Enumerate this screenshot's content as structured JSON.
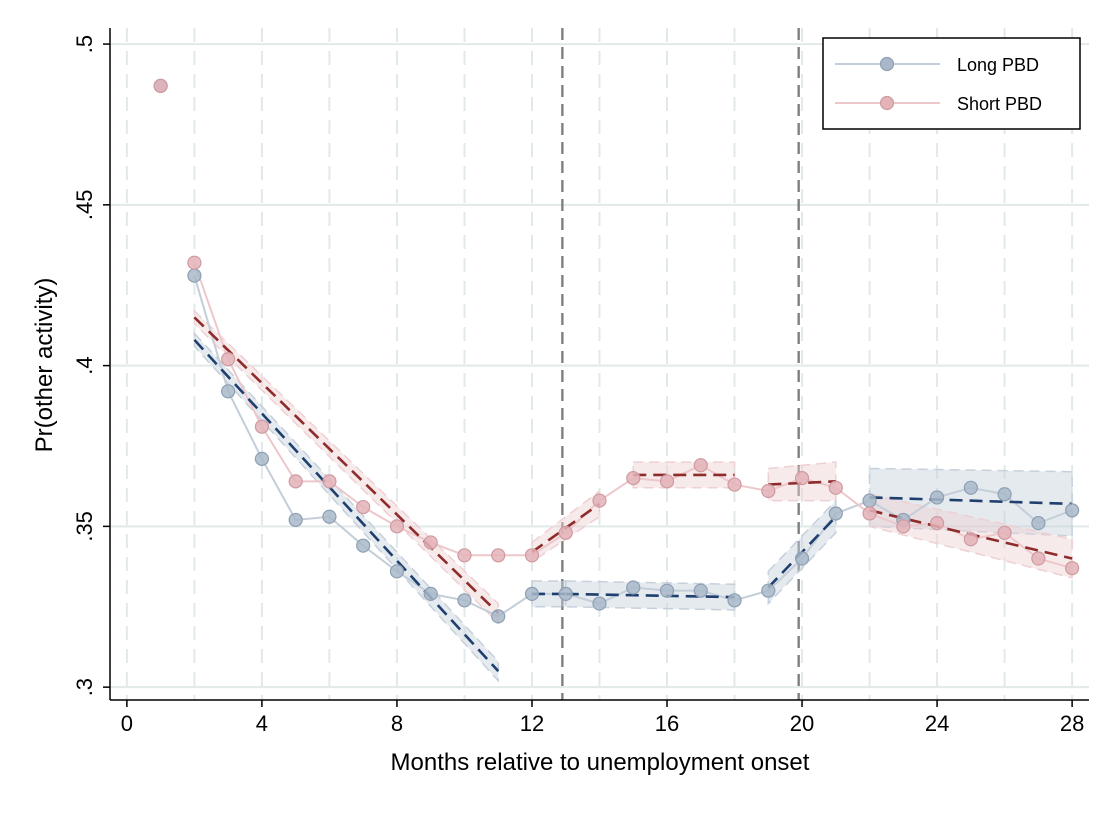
{
  "chart_data": {
    "type": "scatter",
    "xlabel": "Months relative to unemployment onset",
    "ylabel": "Pr(other activity)",
    "xlim": [
      -0.5,
      28.5
    ],
    "ylim": [
      0.296,
      0.505
    ],
    "x_ticks": [
      0,
      4,
      8,
      12,
      16,
      20,
      24,
      28
    ],
    "x_tick_labels": [
      "0",
      "4",
      "8",
      "12",
      "16",
      "20",
      "24",
      "28"
    ],
    "y_ticks": [
      0.3,
      0.35,
      0.4,
      0.45,
      0.5
    ],
    "y_tick_labels": [
      ".3",
      ".35",
      ".4",
      ".45",
      ".5"
    ],
    "x_minor_gridlines": [
      0,
      2,
      4,
      6,
      8,
      10,
      12,
      14,
      16,
      18,
      20,
      22,
      24,
      26,
      28
    ],
    "vertical_reference_lines": [
      12.9,
      19.9
    ],
    "legend_position": "top-right",
    "series": [
      {
        "name": "Long PBD",
        "color": "#1f3f6e",
        "point_color": "#a9b8c9",
        "x": [
          1,
          2,
          3,
          4,
          5,
          6,
          7,
          8,
          9,
          10,
          11,
          12,
          13,
          14,
          15,
          16,
          17,
          18,
          19,
          20,
          21,
          22,
          23,
          24,
          25,
          26,
          27,
          28
        ],
        "y": [
          0.487,
          0.428,
          0.392,
          0.371,
          0.352,
          0.353,
          0.344,
          0.336,
          0.329,
          0.327,
          0.322,
          0.329,
          0.329,
          0.326,
          0.331,
          0.33,
          0.33,
          0.327,
          0.33,
          0.34,
          0.354,
          0.358,
          0.352,
          0.359,
          0.362,
          0.36,
          0.351,
          0.355
        ],
        "fits": [
          {
            "x": [
              2,
              11
            ],
            "y": [
              0.408,
              0.305
            ],
            "ci": [
              0.002,
              0.003
            ]
          },
          {
            "x": [
              12,
              13
            ],
            "y": [
              0.329,
              0.329
            ],
            "ci": [
              0.004,
              0.004
            ]
          },
          {
            "x": [
              13,
              18
            ],
            "y": [
              0.329,
              0.328
            ],
            "ci": [
              0.004,
              0.004
            ]
          },
          {
            "x": [
              19,
              21
            ],
            "y": [
              0.331,
              0.353
            ],
            "ci": [
              0.005,
              0.005
            ]
          },
          {
            "x": [
              22,
              28
            ],
            "y": [
              0.359,
              0.357
            ],
            "ci": [
              0.009,
              0.01
            ]
          }
        ]
      },
      {
        "name": "Short PBD",
        "color": "#8e2b2b",
        "point_color": "#e3b3b8",
        "x": [
          1,
          2,
          3,
          4,
          5,
          6,
          7,
          8,
          9,
          10,
          11,
          12,
          13,
          14,
          15,
          16,
          17,
          18,
          19,
          20,
          21,
          22,
          23,
          24,
          25,
          26,
          27,
          28
        ],
        "y": [
          0.487,
          0.432,
          0.402,
          0.381,
          0.364,
          0.364,
          0.356,
          0.35,
          0.345,
          0.341,
          0.341,
          0.341,
          0.348,
          0.358,
          0.365,
          0.364,
          0.369,
          0.363,
          0.361,
          0.365,
          0.362,
          0.354,
          0.35,
          0.351,
          0.346,
          0.348,
          0.34,
          0.337
        ],
        "fits": [
          {
            "x": [
              2,
              11
            ],
            "y": [
              0.415,
              0.323
            ],
            "ci": [
              0.002,
              0.003
            ]
          },
          {
            "x": [
              12,
              14
            ],
            "y": [
              0.342,
              0.357
            ],
            "ci": [
              0.003,
              0.004
            ]
          },
          {
            "x": [
              15,
              18
            ],
            "y": [
              0.366,
              0.366
            ],
            "ci": [
              0.004,
              0.004
            ]
          },
          {
            "x": [
              19,
              21
            ],
            "y": [
              0.363,
              0.364
            ],
            "ci": [
              0.005,
              0.006
            ]
          },
          {
            "x": [
              22,
              28
            ],
            "y": [
              0.355,
              0.34
            ],
            "ci": [
              0.005,
              0.006
            ]
          }
        ]
      }
    ]
  }
}
